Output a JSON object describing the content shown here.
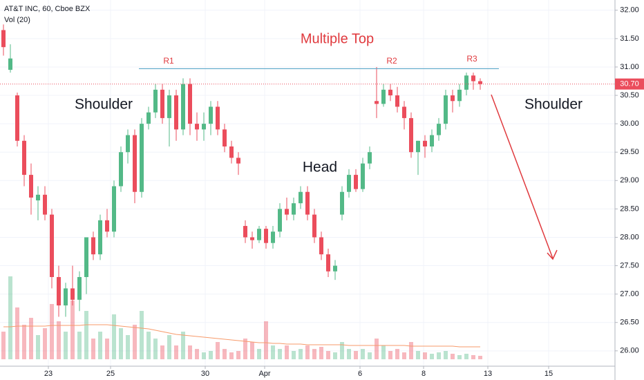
{
  "chart_data": {
    "type": "candlestick",
    "title": "AT&T INC, 60, Cboe BZX",
    "volume_label": "Vol (20)",
    "annotations": {
      "pattern": "Multiple Top",
      "left_shoulder": "Shoulder",
      "right_shoulder": "Shoulder",
      "head": "Head",
      "r1": "R1",
      "r2": "R2",
      "r3": "R3"
    },
    "resistance": 30.97,
    "last_price": {
      "value": 30.7,
      "label": "30.70"
    },
    "up_color": "#53b987",
    "down_color": "#eb4d5c",
    "grid": true,
    "xlim": [
      -0.5,
      88.5
    ],
    "xticks": [
      {
        "value": 6.5,
        "label": "23"
      },
      {
        "value": 15.5,
        "label": "25"
      },
      {
        "value": 29.2,
        "label": "30"
      },
      {
        "value": 37.8,
        "label": "Apr"
      },
      {
        "value": 51.6,
        "label": "6"
      },
      {
        "value": 60.8,
        "label": "8"
      },
      {
        "value": 70.1,
        "label": "13"
      },
      {
        "value": 78.9,
        "label": "15"
      }
    ],
    "ylim": [
      25.73,
      32.18
    ],
    "yticks": [
      {
        "value": 26,
        "label": "26.00"
      },
      {
        "value": 26.5,
        "label": "26.50"
      },
      {
        "value": 27,
        "label": "27.00"
      },
      {
        "value": 27.5,
        "label": "27.50"
      },
      {
        "value": 28,
        "label": "28.00"
      },
      {
        "value": 28.5,
        "label": "28.50"
      },
      {
        "value": 29,
        "label": "29.00"
      },
      {
        "value": 29.5,
        "label": "29.50"
      },
      {
        "value": 30,
        "label": "30.00"
      },
      {
        "value": 30.5,
        "label": "30.50"
      },
      {
        "value": 31,
        "label": "31.00"
      },
      {
        "value": 31.5,
        "label": "31.50"
      },
      {
        "value": 32,
        "label": "32.00"
      }
    ],
    "open": [
      31.65,
      30.95,
      30.5,
      29.7,
      29.1,
      28.65,
      28.75,
      28.4,
      27.3,
      26.8,
      27.1,
      26.9,
      27.3,
      28.0,
      27.7,
      28.3,
      28.1,
      28.9,
      29.5,
      29.8,
      28.8,
      30.0,
      30.2,
      30.6,
      30.1,
      30.5,
      29.9,
      30.7,
      30.0,
      29.9,
      30.0,
      30.3,
      29.9,
      29.6,
      29.4,
      28.2,
      28.0,
      27.95,
      28.15,
      27.9,
      28.1,
      28.5,
      28.4,
      28.6,
      28.8,
      28.4,
      28.0,
      27.7,
      27.4,
      28.4,
      28.8,
      29.1,
      28.85,
      29.3,
      30.4,
      30.35,
      30.6,
      30.5,
      30.3,
      30.1,
      29.5,
      29.7,
      29.6,
      29.8,
      30.0,
      30.5,
      30.4,
      30.6,
      30.85,
      30.75
    ],
    "high": [
      31.75,
      31.4,
      30.55,
      29.8,
      29.3,
      28.9,
      28.9,
      28.5,
      27.5,
      27.2,
      27.5,
      27.4,
      28.0,
      28.1,
      28.4,
      28.5,
      29.0,
      29.6,
      29.9,
      29.9,
      30.1,
      30.3,
      30.7,
      30.7,
      30.6,
      30.6,
      30.8,
      30.8,
      30.2,
      30.2,
      30.4,
      30.4,
      30.0,
      29.7,
      29.5,
      28.3,
      28.1,
      28.2,
      28.2,
      28.2,
      28.6,
      28.7,
      28.7,
      28.9,
      28.9,
      28.5,
      28.1,
      27.8,
      27.6,
      28.9,
      29.2,
      29.2,
      29.4,
      29.6,
      31.0,
      30.7,
      30.7,
      30.65,
      30.4,
      30.2,
      29.7,
      29.8,
      29.9,
      30.1,
      30.6,
      30.6,
      30.7,
      30.9,
      30.9,
      30.8
    ],
    "low": [
      31.2,
      30.9,
      29.6,
      28.9,
      28.4,
      28.3,
      28.3,
      27.1,
      26.6,
      26.6,
      26.8,
      26.7,
      27.0,
      27.6,
      27.6,
      28.0,
      28.0,
      28.8,
      29.3,
      28.6,
      28.7,
      29.9,
      30.1,
      30.0,
      29.6,
      29.7,
      29.8,
      29.8,
      29.7,
      29.7,
      29.8,
      29.8,
      29.5,
      29.3,
      29.1,
      27.9,
      27.8,
      27.9,
      27.8,
      27.8,
      28.0,
      28.3,
      28.3,
      28.5,
      28.3,
      27.9,
      27.6,
      27.3,
      27.25,
      28.3,
      28.7,
      28.8,
      28.8,
      29.2,
      30.1,
      30.3,
      30.4,
      30.2,
      29.9,
      29.4,
      29.1,
      29.4,
      29.5,
      29.7,
      29.9,
      30.2,
      30.3,
      30.5,
      30.6,
      30.6
    ],
    "close": [
      31.35,
      31.15,
      29.7,
      29.1,
      28.7,
      28.75,
      28.4,
      27.3,
      26.8,
      27.1,
      26.9,
      27.3,
      28.0,
      27.7,
      28.3,
      28.1,
      28.9,
      29.5,
      29.8,
      28.8,
      30.0,
      30.2,
      30.6,
      30.1,
      30.5,
      29.9,
      30.7,
      30.0,
      29.9,
      30.0,
      30.3,
      29.9,
      29.6,
      29.4,
      29.3,
      28.0,
      27.95,
      28.15,
      27.9,
      28.1,
      28.5,
      28.4,
      28.6,
      28.8,
      28.4,
      28.0,
      27.7,
      27.4,
      27.5,
      28.8,
      29.1,
      28.85,
      29.3,
      29.5,
      30.35,
      30.6,
      30.5,
      30.3,
      30.1,
      29.5,
      29.7,
      29.6,
      29.8,
      30.0,
      30.5,
      30.4,
      30.6,
      30.85,
      30.75,
      30.7
    ],
    "volume_lim": [
      0,
      150
    ],
    "volume": [
      40,
      120,
      75,
      50,
      60,
      35,
      45,
      80,
      55,
      40,
      85,
      40,
      70,
      30,
      40,
      30,
      65,
      45,
      35,
      50,
      70,
      40,
      30,
      20,
      35,
      20,
      40,
      20,
      15,
      10,
      12,
      25,
      15,
      10,
      12,
      30,
      25,
      15,
      55,
      20,
      15,
      20,
      12,
      15,
      20,
      15,
      18,
      12,
      10,
      25,
      15,
      12,
      15,
      10,
      30,
      20,
      12,
      15,
      10,
      25,
      12,
      10,
      8,
      10,
      12,
      8,
      6,
      8,
      6,
      5
    ],
    "volume_ma": [
      47,
      47,
      48,
      48,
      48,
      48,
      48,
      49,
      49,
      49,
      49,
      49,
      50,
      50,
      50,
      50,
      49,
      48,
      47,
      46,
      45,
      44,
      42,
      40,
      38,
      36,
      35,
      34,
      33,
      32,
      31,
      30,
      29,
      28,
      27,
      26,
      25,
      24,
      24,
      23,
      23,
      22,
      22,
      22,
      21,
      21,
      21,
      21,
      21,
      21,
      20,
      20,
      20,
      20,
      20,
      20,
      20,
      20,
      20,
      19,
      19,
      19,
      19,
      19,
      19,
      19,
      18,
      18,
      18,
      18
    ]
  }
}
